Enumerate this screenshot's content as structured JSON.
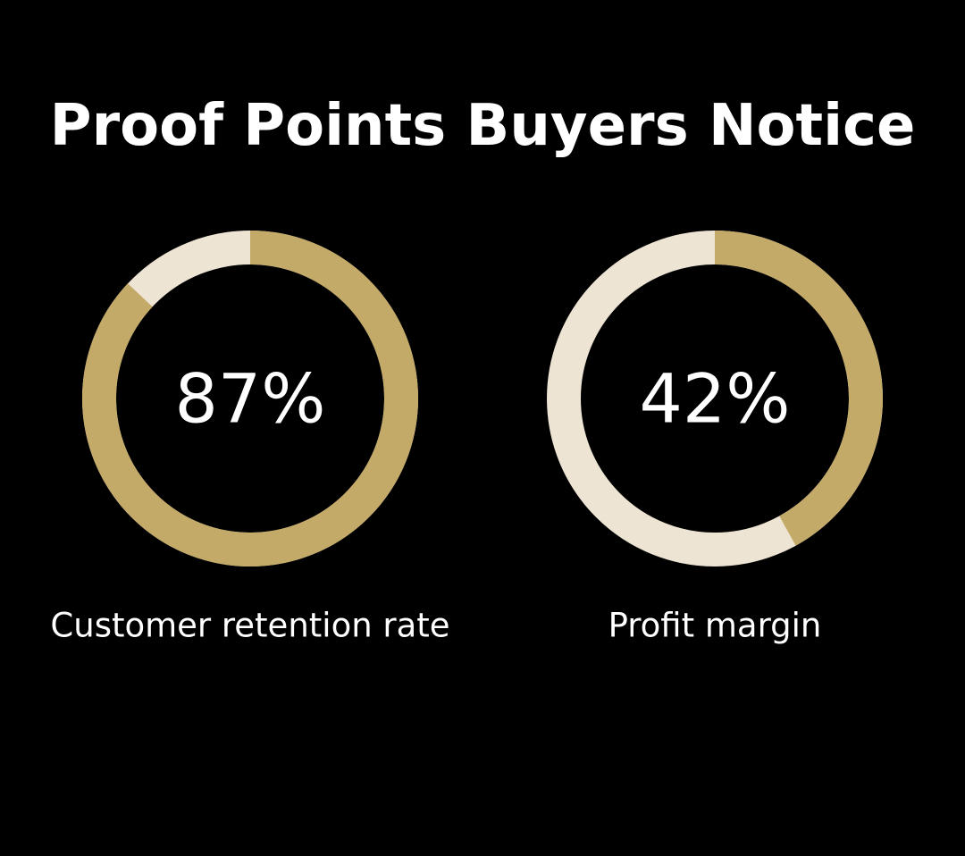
{
  "title": "Proof Points Buyers Notice",
  "colors": {
    "background": "#000000",
    "filled": "#c4aa68",
    "remaining": "#ede4d3",
    "text": "#ffffff"
  },
  "chart_data": [
    {
      "type": "pie",
      "style": "donut",
      "label": "Customer retention rate",
      "value_text": "87%",
      "value": 87,
      "max": 100
    },
    {
      "type": "pie",
      "style": "donut",
      "label": "Profit margin",
      "value_text": "42%",
      "value": 42,
      "max": 100
    }
  ]
}
